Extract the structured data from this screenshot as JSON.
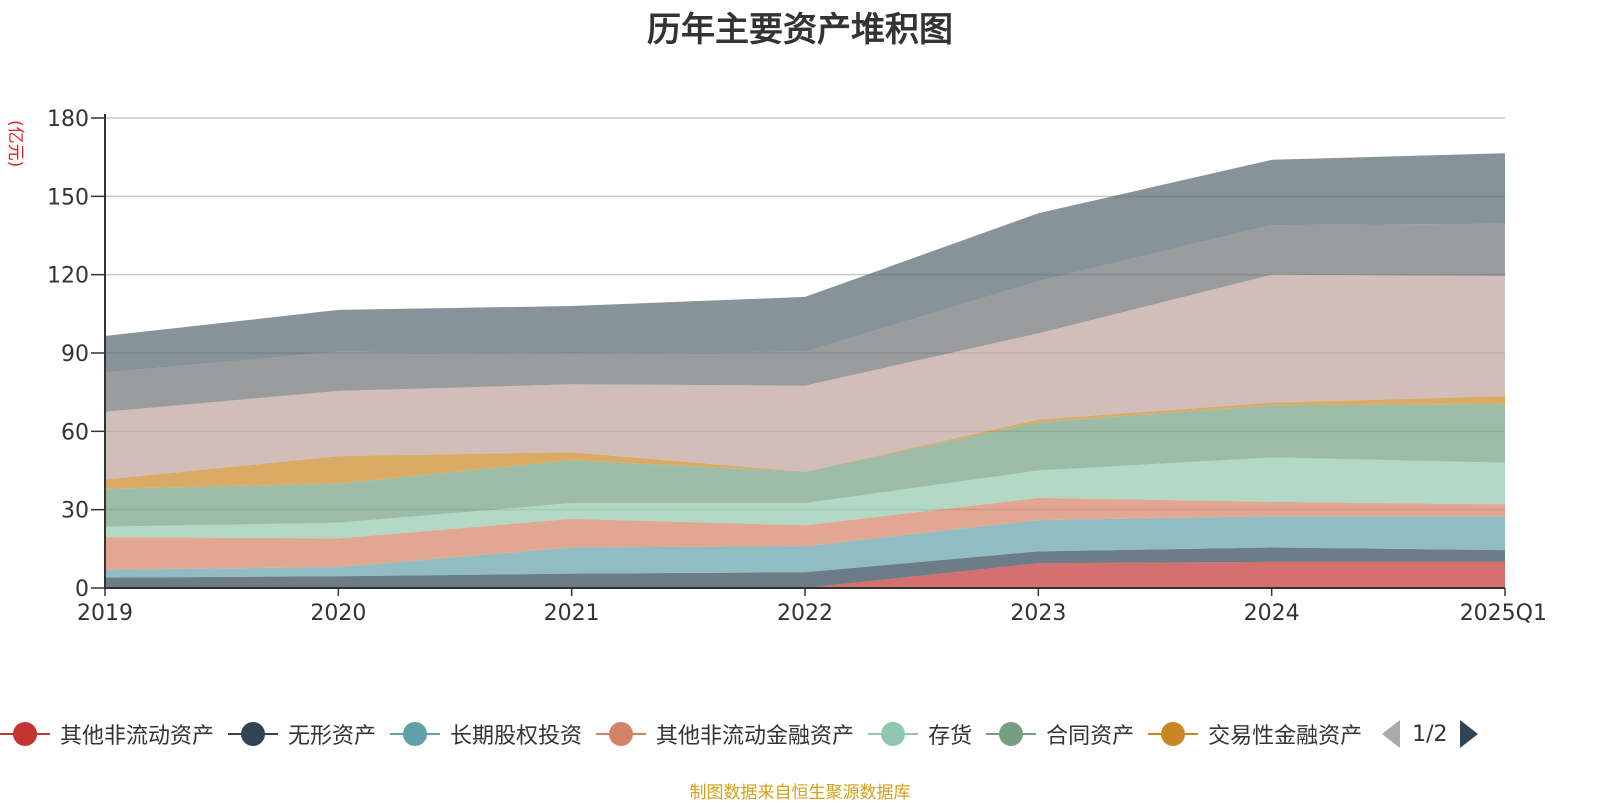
{
  "chart_data": {
    "type": "area",
    "stacked": true,
    "title": "历年主要资产堆积图",
    "unit_label": "(亿元)",
    "categories": [
      "2019",
      "2020",
      "2021",
      "2022",
      "2023",
      "2024",
      "2025Q1"
    ],
    "ylim": [
      0,
      180
    ],
    "yticks": [
      0,
      30,
      60,
      90,
      120,
      150,
      180
    ],
    "grid": true,
    "series": [
      {
        "name": "其他非流动资产",
        "color": "#c23531",
        "values": [
          0,
          0,
          0,
          0,
          9.5,
          10,
          10
        ]
      },
      {
        "name": "无形资产",
        "color": "#2f4554",
        "values": [
          4,
          4.5,
          5.5,
          6,
          4.5,
          5.5,
          4.5
        ]
      },
      {
        "name": "长期股权投资",
        "color": "#61a0a8",
        "values": [
          3,
          3.5,
          10,
          10,
          12,
          12,
          13
        ]
      },
      {
        "name": "其他非流动金融资产",
        "color": "#d48265",
        "values": [
          12.5,
          11,
          11,
          8,
          8.5,
          5.5,
          4.5
        ]
      },
      {
        "name": "存货",
        "color": "#91c7ae",
        "values": [
          4,
          6,
          6,
          8.5,
          10.5,
          17,
          16
        ]
      },
      {
        "name": "合同资产",
        "color": "#749f83",
        "values": [
          14.5,
          15,
          16.5,
          12,
          18.5,
          20,
          22.5
        ]
      },
      {
        "name": "交易性金融资产",
        "color": "#ca8622",
        "values": [
          3.5,
          10.5,
          3,
          0,
          1,
          1,
          3
        ]
      },
      {
        "name": "",
        "color": "#bda29a",
        "values": [
          26,
          25,
          26,
          33,
          33,
          49,
          46
        ]
      },
      {
        "name": "",
        "color": "#6e7074",
        "values": [
          15,
          15,
          12,
          13,
          20,
          19,
          20
        ]
      },
      {
        "name": "",
        "color": "#546570",
        "values": [
          14,
          16,
          18,
          21,
          26,
          25,
          27
        ]
      }
    ]
  },
  "legend": {
    "page_text": "1/2"
  },
  "source_note": "制图数据来自恒生聚源数据库"
}
